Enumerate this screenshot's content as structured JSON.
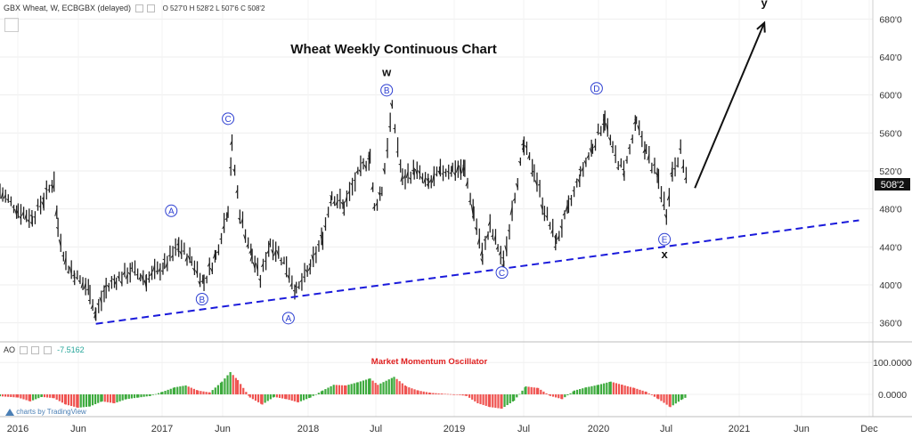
{
  "header": {
    "symbol": "GBX Wheat, W, ECBGBX (delayed)",
    "ohlc": "O 527'0  H 528'2  L 507'6  C 508'2",
    "ao_label": "AO",
    "ao_value": "-7.5162",
    "watermark": "charts by TradingView"
  },
  "colors": {
    "up": "#26a69a",
    "upBar": "#3daa3d",
    "down": "#ef5350",
    "trend": "#1a1adb",
    "circle": "#2d3fd1",
    "arrow": "#111111"
  },
  "chart_data": [
    {
      "type": "bar",
      "title": "Wheat Weekly Continuous Chart",
      "price_axis": {
        "ticks": [
          "360'0",
          "400'0",
          "440'0",
          "480'0",
          "520'0",
          "560'0",
          "600'0",
          "640'0",
          "680'0"
        ],
        "ylim": [
          340,
          700
        ]
      },
      "last_price": "508'2",
      "x_tick_labels": [
        "2016",
        "Jun",
        "2017",
        "Jun",
        "2018",
        "Jul",
        "2019",
        "Jul",
        "2020",
        "Jul",
        "2021",
        "Jun",
        "Dec"
      ],
      "x_range": [
        "2015-11-25",
        "2021-12-15"
      ],
      "bars": [
        [
          "2015-11-25",
          498
        ],
        [
          "2016-01-10",
          478
        ],
        [
          "2016-02-15",
          470
        ],
        [
          "2016-03-15",
          489
        ],
        [
          "2016-04-10",
          510
        ],
        [
          "2016-04-20",
          460
        ],
        [
          "2016-05-10",
          423
        ],
        [
          "2016-06-01",
          410
        ],
        [
          "2016-07-10",
          393
        ],
        [
          "2016-07-25",
          368
        ],
        [
          "2016-08-20",
          395
        ],
        [
          "2016-09-15",
          405
        ],
        [
          "2016-10-25",
          415
        ],
        [
          "2016-11-30",
          405
        ],
        [
          "2017-01-15",
          420
        ],
        [
          "2017-02-20",
          440
        ],
        [
          "2017-03-25",
          425
        ],
        [
          "2017-04-25",
          402
        ],
        [
          "2017-05-25",
          430
        ],
        [
          "2017-06-25",
          480
        ],
        [
          "2017-07-05",
          545
        ],
        [
          "2017-07-25",
          475
        ],
        [
          "2017-08-25",
          430
        ],
        [
          "2017-09-15",
          405
        ],
        [
          "2017-10-10",
          445
        ],
        [
          "2017-11-20",
          420
        ],
        [
          "2017-12-15",
          392
        ],
        [
          "2018-01-20",
          418
        ],
        [
          "2018-02-20",
          450
        ],
        [
          "2018-03-15",
          495
        ],
        [
          "2018-04-15",
          482
        ],
        [
          "2018-05-20",
          515
        ],
        [
          "2018-06-20",
          535
        ],
        [
          "2018-07-01",
          480
        ],
        [
          "2018-07-20",
          500
        ],
        [
          "2018-08-15",
          585
        ],
        [
          "2018-09-10",
          510
        ],
        [
          "2018-10-10",
          520
        ],
        [
          "2018-11-15",
          505
        ],
        [
          "2018-12-15",
          518
        ],
        [
          "2019-01-15",
          522
        ],
        [
          "2019-02-15",
          520
        ],
        [
          "2019-03-10",
          475
        ],
        [
          "2019-04-01",
          430
        ],
        [
          "2019-04-20",
          460
        ],
        [
          "2019-05-10",
          440
        ],
        [
          "2019-05-25",
          420
        ],
        [
          "2019-06-15",
          480
        ],
        [
          "2019-07-15",
          545
        ],
        [
          "2019-08-10",
          520
        ],
        [
          "2019-09-05",
          478
        ],
        [
          "2019-10-05",
          445
        ],
        [
          "2019-11-05",
          480
        ],
        [
          "2019-12-05",
          515
        ],
        [
          "2020-01-05",
          545
        ],
        [
          "2020-02-05",
          575
        ],
        [
          "2020-02-25",
          540
        ],
        [
          "2020-03-25",
          518
        ],
        [
          "2020-04-25",
          570
        ],
        [
          "2020-05-20",
          540
        ],
        [
          "2020-06-20",
          510
        ],
        [
          "2020-07-10",
          475
        ],
        [
          "2020-07-25",
          520
        ],
        [
          "2020-08-15",
          540
        ],
        [
          "2020-09-01",
          508
        ]
      ]
    },
    {
      "type": "bar",
      "title": "Market Momentum Oscillator",
      "axis": {
        "ticks": [
          "100.0000",
          "0.0000"
        ],
        "ylim": [
          -70,
          165
        ]
      },
      "bars": [
        [
          "2015-11-25",
          -6
        ],
        [
          "2016-01-10",
          -10
        ],
        [
          "2016-02-10",
          -22
        ],
        [
          "2016-03-10",
          -8
        ],
        [
          "2016-04-10",
          -12
        ],
        [
          "2016-05-10",
          -32
        ],
        [
          "2016-06-10",
          -42
        ],
        [
          "2016-07-10",
          -38
        ],
        [
          "2016-08-10",
          -22
        ],
        [
          "2016-09-10",
          -28
        ],
        [
          "2016-10-10",
          -15
        ],
        [
          "2016-11-10",
          -10
        ],
        [
          "2016-12-10",
          -5
        ],
        [
          "2017-01-10",
          8
        ],
        [
          "2017-02-10",
          22
        ],
        [
          "2017-03-10",
          28
        ],
        [
          "2017-04-10",
          12
        ],
        [
          "2017-05-10",
          6
        ],
        [
          "2017-06-10",
          40
        ],
        [
          "2017-07-01",
          70
        ],
        [
          "2017-07-20",
          45
        ],
        [
          "2017-08-20",
          -10
        ],
        [
          "2017-09-20",
          -32
        ],
        [
          "2017-10-20",
          -8
        ],
        [
          "2017-11-20",
          -15
        ],
        [
          "2017-12-20",
          -25
        ],
        [
          "2018-01-20",
          -10
        ],
        [
          "2018-02-20",
          12
        ],
        [
          "2018-03-20",
          30
        ],
        [
          "2018-04-20",
          28
        ],
        [
          "2018-05-20",
          38
        ],
        [
          "2018-06-20",
          50
        ],
        [
          "2018-07-10",
          30
        ],
        [
          "2018-08-20",
          55
        ],
        [
          "2018-09-20",
          25
        ],
        [
          "2018-10-20",
          12
        ],
        [
          "2018-11-20",
          5
        ],
        [
          "2018-12-20",
          2
        ],
        [
          "2019-01-20",
          0
        ],
        [
          "2019-02-20",
          -5
        ],
        [
          "2019-03-20",
          -28
        ],
        [
          "2019-04-20",
          -40
        ],
        [
          "2019-05-20",
          -45
        ],
        [
          "2019-06-20",
          -20
        ],
        [
          "2019-07-20",
          25
        ],
        [
          "2019-08-20",
          20
        ],
        [
          "2019-09-20",
          -5
        ],
        [
          "2019-10-20",
          -15
        ],
        [
          "2019-11-20",
          12
        ],
        [
          "2019-12-20",
          22
        ],
        [
          "2020-01-20",
          30
        ],
        [
          "2020-02-20",
          40
        ],
        [
          "2020-03-20",
          30
        ],
        [
          "2020-04-20",
          20
        ],
        [
          "2020-05-20",
          8
        ],
        [
          "2020-06-20",
          -15
        ],
        [
          "2020-07-20",
          -40
        ],
        [
          "2020-08-20",
          -15
        ],
        [
          "2020-09-01",
          -8
        ]
      ]
    }
  ],
  "annotations": {
    "wave_labels": [
      {
        "text": "A",
        "date": "2017-02-01",
        "price": 478
      },
      {
        "text": "B",
        "date": "2017-04-20",
        "price": 385
      },
      {
        "text": "C",
        "date": "2017-06-25",
        "price": 575
      },
      {
        "text": "A",
        "date": "2017-11-25",
        "price": 365
      },
      {
        "text": "B",
        "date": "2018-08-01",
        "price": 605
      },
      {
        "text": "C",
        "date": "2019-05-20",
        "price": 413
      },
      {
        "text": "D",
        "date": "2020-01-15",
        "price": 607
      },
      {
        "text": "E",
        "date": "2020-07-05",
        "price": 448
      }
    ],
    "letters": [
      {
        "text": "w",
        "date": "2018-08-01",
        "price": 620
      },
      {
        "text": "x",
        "date": "2020-07-05",
        "price": 428
      },
      {
        "text": "y",
        "date": "2021-03-15",
        "price": 693
      }
    ],
    "trendline": {
      "from": {
        "date": "2016-07-25",
        "price": 359
      },
      "to": {
        "date": "2021-11-10",
        "price": 468
      }
    },
    "arrow": {
      "from": {
        "date": "2020-09-20",
        "price": 502
      },
      "to": {
        "date": "2021-03-15",
        "price": 676
      }
    }
  }
}
